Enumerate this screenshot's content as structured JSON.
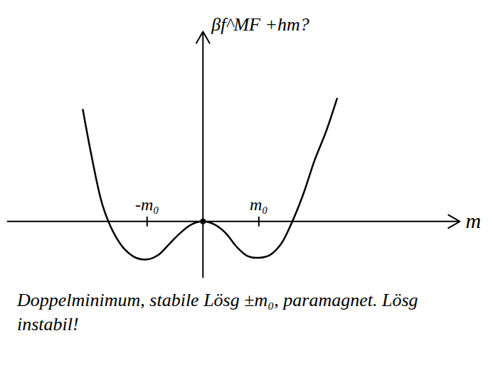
{
  "chart_data": {
    "type": "line",
    "x_label": "m",
    "y_label": "βf^MF +hm?",
    "caption": "Doppelminimum, stabile Lösg ±m₀, paramagnet. Lösg instabil!",
    "x": [
      -2.15,
      -2.0,
      -1.8,
      -1.6,
      -1.4,
      -1.2,
      -1.0,
      -0.8,
      -0.6,
      -0.4,
      -0.2,
      0,
      0.2,
      0.4,
      0.6,
      0.8,
      1.0,
      1.2,
      1.4,
      1.6,
      1.8,
      2.0,
      2.2,
      2.4
    ],
    "values": [
      2.0,
      1.2,
      0.3,
      -0.2,
      -0.5,
      -0.65,
      -0.68,
      -0.6,
      -0.4,
      -0.2,
      -0.05,
      0,
      -0.05,
      -0.2,
      -0.45,
      -0.62,
      -0.65,
      -0.6,
      -0.4,
      0.0,
      0.5,
      1.1,
      1.6,
      2.2
    ],
    "color": "#000000",
    "xlim": [
      -3.5,
      4.6
    ],
    "ylim": [
      -1.0,
      3.4
    ],
    "xticks": [
      {
        "value": -1,
        "label": "-m₀"
      },
      {
        "value": 1,
        "label": "m₀"
      }
    ],
    "yticks": [],
    "tick_labels": "x",
    "grid": false
  }
}
